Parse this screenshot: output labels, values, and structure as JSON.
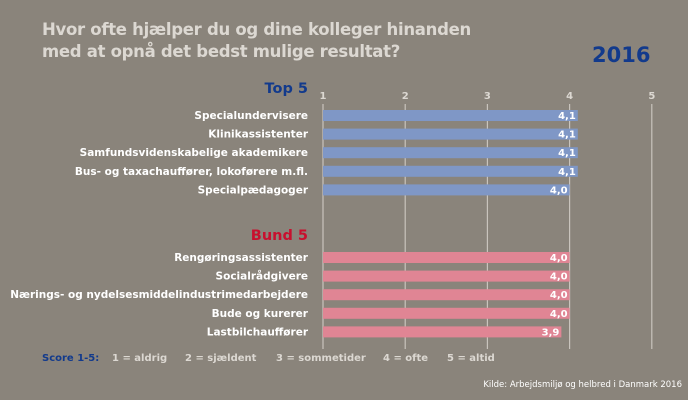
{
  "title": "Hvor ofte hjælper du og dine kolleger hinanden med at opnå det bedst mulige resultat?",
  "year": "2016",
  "colors": {
    "background": "#8a847b",
    "top_bar": "#7f97c6",
    "bottom_bar": "#e08594",
    "top_heading": "#123a8c",
    "bottom_heading": "#c8102e"
  },
  "chart_data": {
    "type": "bar",
    "orientation": "horizontal",
    "title": "Hvor ofte hjælper du og dine kolleger hinanden med at opnå det bedst mulige resultat?",
    "xlim": [
      1,
      5
    ],
    "ticks": [
      "1",
      "2",
      "3",
      "4",
      "5"
    ],
    "grid": true,
    "groups": [
      {
        "name": "Top 5",
        "categories": [
          "Specialundervisere",
          "Klinikassistenter",
          "Samfundsvidenskabelige akademikere",
          "Bus- og taxachauffører, lokoførere m.fl.",
          "Specialpædagoger"
        ],
        "values": [
          4.1,
          4.1,
          4.1,
          4.1,
          4.0
        ],
        "labels": [
          "4,1",
          "4,1",
          "4,1",
          "4,1",
          "4,0"
        ]
      },
      {
        "name": "Bund 5",
        "categories": [
          "Rengøringsassistenter",
          "Socialrådgivere",
          "Nærings- og nydelsesmiddelindustrimedarbejdere",
          "Bude og kurerer",
          "Lastbilchauffører"
        ],
        "values": [
          4.0,
          4.0,
          4.0,
          4.0,
          3.9
        ],
        "labels": [
          "4,0",
          "4,0",
          "4,0",
          "4,0",
          "3,9"
        ]
      }
    ]
  },
  "legend": {
    "heading": "Score 1-5:",
    "items": [
      "1 = aldrig",
      "2 = sjældent",
      "3 = sommetider",
      "4 = ofte",
      "5 = altid"
    ]
  },
  "source": "Kilde: Arbejdsmiljø og helbred i Danmark 2016"
}
